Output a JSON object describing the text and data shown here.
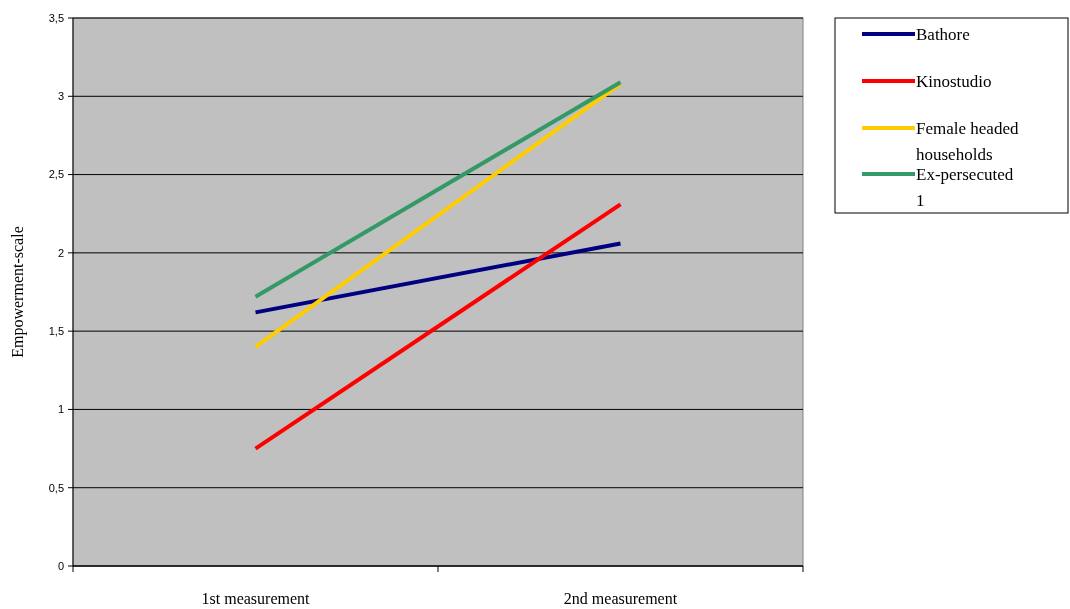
{
  "chart_data": {
    "type": "line",
    "ylabel": "Empowerment-scale",
    "categories": [
      "1st measurement",
      "2nd measurement"
    ],
    "series": [
      {
        "name": "Bathore",
        "color": "#000080",
        "values": [
          1.62,
          2.06
        ]
      },
      {
        "name": "Kinostudio",
        "color": "#ff0000",
        "values": [
          0.75,
          2.31
        ]
      },
      {
        "name": "Female headed households",
        "color": "#ffcc00",
        "values": [
          1.4,
          3.08
        ]
      },
      {
        "name": "Ex-persecuted 1",
        "color": "#339966",
        "values": [
          1.72,
          3.09
        ]
      }
    ],
    "ylim": [
      0,
      3.5
    ],
    "yticks": [
      0,
      {
        "value": 0.5,
        "label": "0,5"
      },
      1,
      {
        "value": 1.5,
        "label": "1,5"
      },
      2,
      {
        "value": 2.5,
        "label": "2,5"
      },
      3,
      {
        "value": 3.5,
        "label": "3,5"
      }
    ],
    "grid": "y",
    "legend": "top right",
    "marker": "none",
    "line_style": "solid"
  }
}
